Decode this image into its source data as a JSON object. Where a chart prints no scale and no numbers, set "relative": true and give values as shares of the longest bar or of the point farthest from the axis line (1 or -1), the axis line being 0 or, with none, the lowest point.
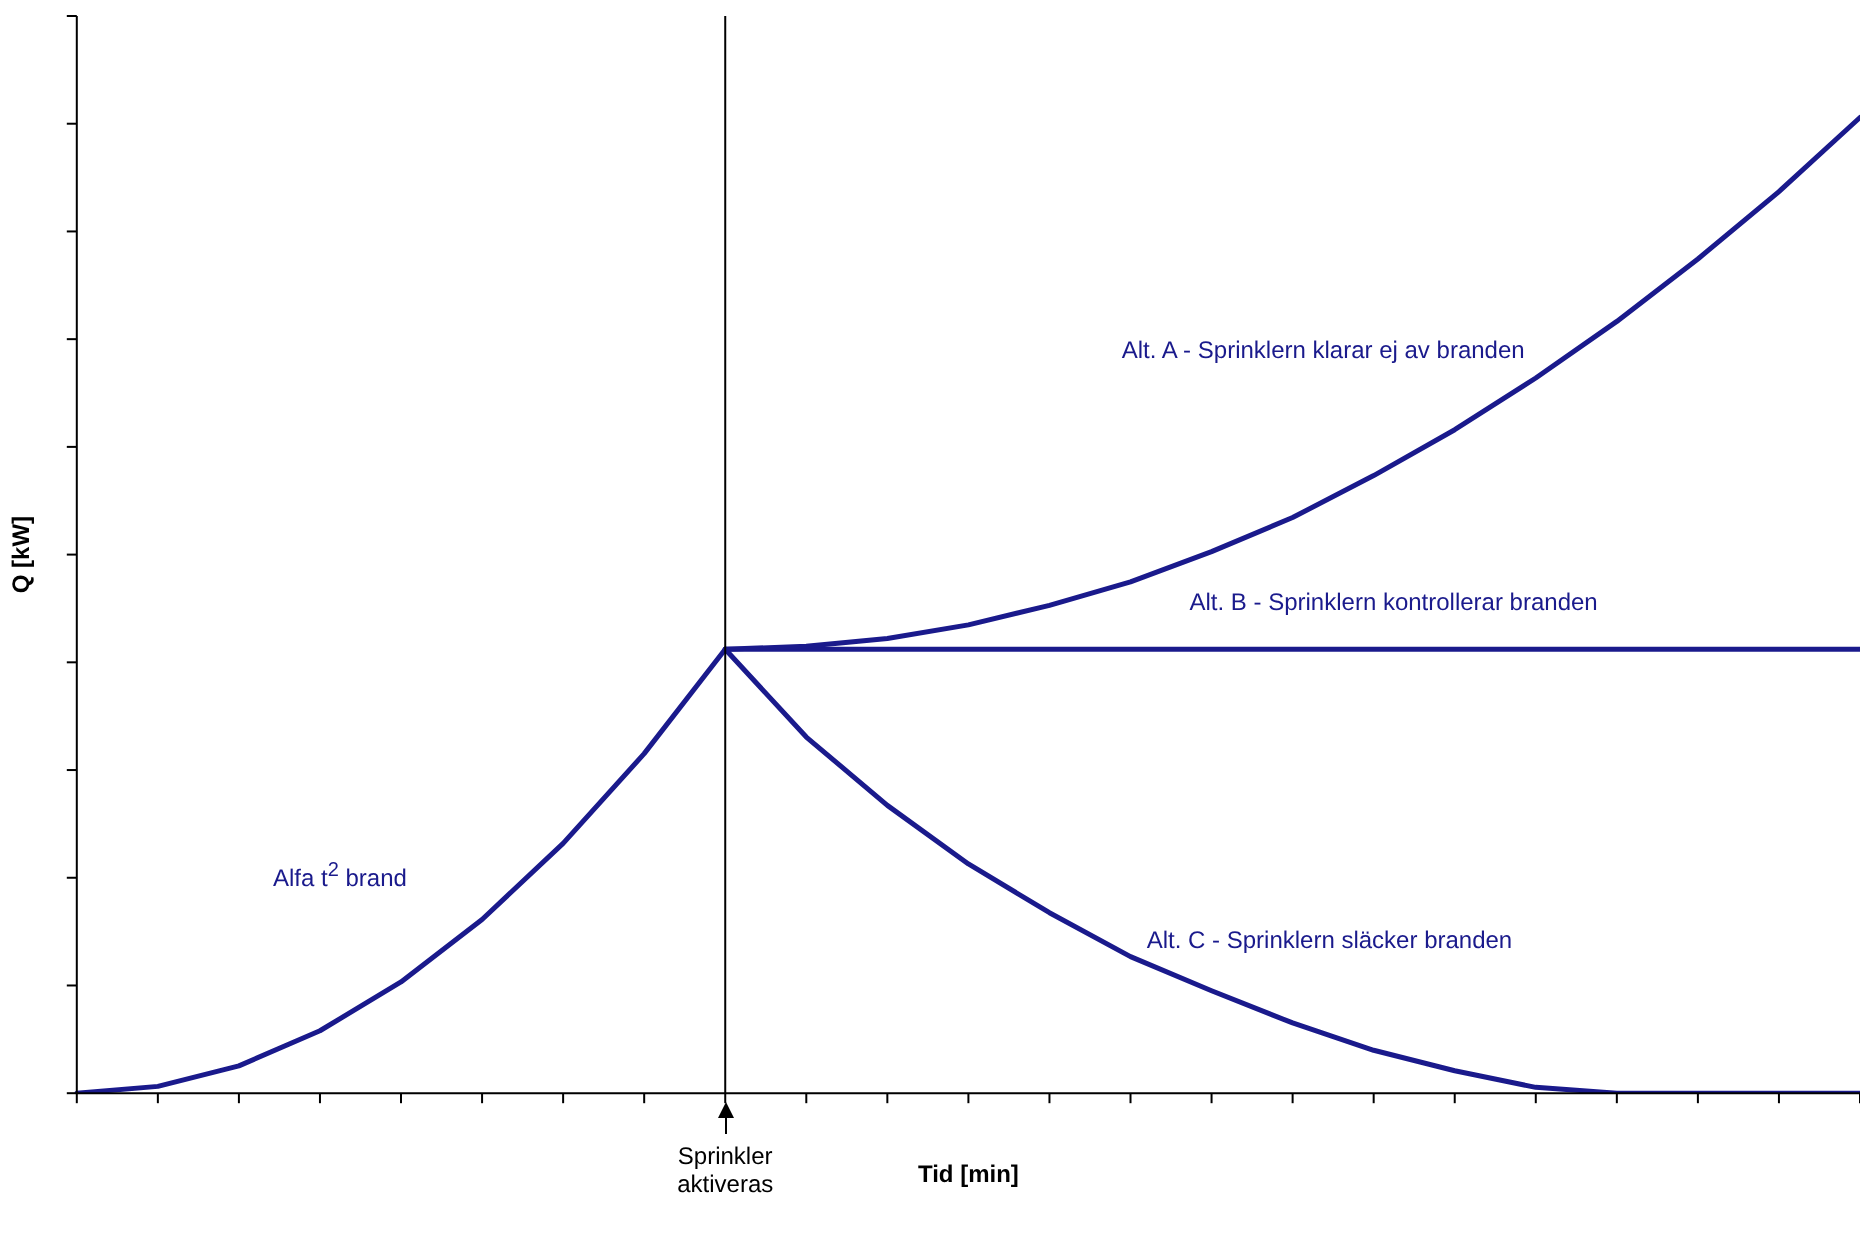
{
  "chart_data": {
    "type": "line",
    "relative": true,
    "xlabel": "Tid [min]",
    "ylabel": "Q [kW]",
    "categories": [
      null,
      null,
      null,
      null,
      null,
      null,
      null,
      null,
      null,
      null,
      null,
      null,
      null,
      null,
      null,
      null,
      null,
      null,
      null,
      null,
      null,
      null,
      null
    ],
    "series": [
      {
        "name": "Alfa t$^{2}$ brand",
        "color": "#1a1a8c",
        "values": [
          0,
          0.007,
          0.028,
          0.064,
          0.114,
          0.178,
          0.256,
          0.348,
          0.455,
          null,
          null,
          null,
          null,
          null,
          null,
          null,
          null,
          null,
          null,
          null,
          null,
          null,
          null
        ]
      },
      {
        "name": "Alt. A - Sprinklern klarar ej av branden",
        "color": "#1a1a8c",
        "values": [
          null,
          null,
          null,
          null,
          null,
          null,
          null,
          null,
          0.455,
          0.458,
          0.466,
          0.48,
          0.5,
          0.524,
          0.555,
          0.59,
          0.633,
          0.68,
          0.733,
          0.791,
          0.855,
          0.924,
          1
        ]
      },
      {
        "name": "Alt. B - Sprinklern kontrollerar branden",
        "color": "#1a1a8c",
        "values": [
          null,
          null,
          null,
          null,
          null,
          null,
          null,
          null,
          0.455,
          0.455,
          0.455,
          0.455,
          0.455,
          0.455,
          0.455,
          0.455,
          0.455,
          0.455,
          0.455,
          0.455,
          0.455,
          0.455,
          0.455
        ]
      },
      {
        "name": "Alt. C - Sprinklern släcker branden",
        "color": "#1a1a8c",
        "values": [
          null,
          null,
          null,
          null,
          null,
          null,
          null,
          null,
          0.455,
          0.365,
          0.295,
          0.235,
          0.185,
          0.14,
          0.105,
          0.072,
          0.044,
          0.023,
          0.006,
          0,
          0,
          0,
          0
        ]
      }
    ],
    "annotations": [
      "Sprinkler aktiveras"
    ],
    "marker": "none",
    "line_style": "solid",
    "grid": false,
    "legend": false
  }
}
